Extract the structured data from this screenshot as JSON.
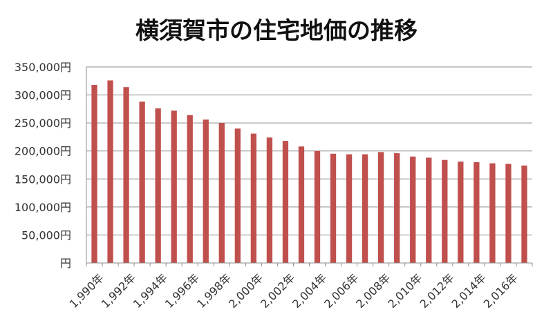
{
  "chart_data": {
    "type": "bar",
    "title": "横須賀市の住宅地価の推移",
    "xlabel": "",
    "ylabel": "",
    "y_unit": "円",
    "ylim": [
      0,
      350000
    ],
    "y_ticks": [
      0,
      50000,
      100000,
      150000,
      200000,
      250000,
      300000,
      350000
    ],
    "y_tick_labels": [
      "円",
      "50,000円",
      "100,000円",
      "150,000円",
      "200,000円",
      "250,000円",
      "300,000円",
      "350,000円"
    ],
    "grid": true,
    "legend": "none",
    "bar_color": "#c0504d",
    "categories": [
      "1,990年",
      "1,991年",
      "1,992年",
      "1,993年",
      "1,994年",
      "1,995年",
      "1,996年",
      "1,997年",
      "1,998年",
      "1,999年",
      "2,000年",
      "2,001年",
      "2,002年",
      "2,003年",
      "2,004年",
      "2,005年",
      "2,006年",
      "2,007年",
      "2,008年",
      "2,009年",
      "2,010年",
      "2,011年",
      "2,012年",
      "2,013年",
      "2,014年",
      "2,015年",
      "2,016年",
      "2,017年"
    ],
    "shown_x_labels": [
      "1,990年",
      "1,992年",
      "1,994年",
      "1,996年",
      "1,998年",
      "2,000年",
      "2,002年",
      "2,004年",
      "2,006年",
      "2,008年",
      "2,010年",
      "2,012年",
      "2,014年",
      "2,016年"
    ],
    "values": [
      318000,
      326000,
      314000,
      288000,
      276000,
      272000,
      264000,
      256000,
      250000,
      240000,
      231000,
      224000,
      218000,
      208000,
      200000,
      195000,
      194000,
      194000,
      198000,
      196000,
      190000,
      188000,
      184000,
      181000,
      180000,
      178000,
      177000,
      174000
    ]
  }
}
